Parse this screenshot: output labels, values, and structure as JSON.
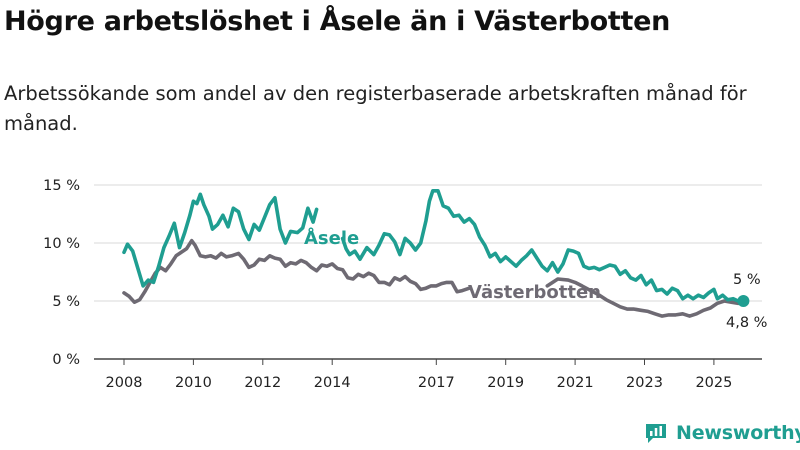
{
  "title": "Högre arbetslöshet i Åsele än i Västerbotten",
  "subtitle": "Arbetssökande som andel av den registerbaserade arbetskraften månad för månad.",
  "logo": {
    "text": "Newsworthy",
    "icon": "bar-chart-icon"
  },
  "colors": {
    "asele": "#1f9e91",
    "vasterbotten": "#6e6a73",
    "grid": "#d9d9d9",
    "axis": "#444444"
  },
  "chart_data": {
    "type": "line",
    "title": "Högre arbetslöshet i Åsele än i Västerbotten",
    "xlabel": "",
    "ylabel": "",
    "xlim": [
      2007.5,
      2026.5
    ],
    "ylim": [
      0,
      15
    ],
    "yticks": [
      0,
      5,
      10,
      15
    ],
    "ytick_labels": [
      "0 %",
      "5 %",
      "10 %",
      "15 %"
    ],
    "xticks": [
      2008,
      2010,
      2012,
      2014,
      2017,
      2019,
      2021,
      2023,
      2025
    ],
    "xtick_labels": [
      "2008",
      "2010",
      "2012",
      "2014",
      "2017",
      "2019",
      "2021",
      "2023",
      "2025"
    ],
    "grid": true,
    "series": [
      {
        "name": "Åsele",
        "label": "Åsele",
        "end_label": "5 %",
        "points": [
          [
            2008.0,
            9.2
          ],
          [
            2008.1,
            9.9
          ],
          [
            2008.25,
            9.3
          ],
          [
            2008.4,
            7.8
          ],
          [
            2008.55,
            6.3
          ],
          [
            2008.7,
            6.8
          ],
          [
            2008.85,
            6.6
          ],
          [
            2009.0,
            8.0
          ],
          [
            2009.15,
            9.6
          ],
          [
            2009.3,
            10.6
          ],
          [
            2009.45,
            11.7
          ],
          [
            2009.6,
            9.6
          ],
          [
            2009.75,
            10.9
          ],
          [
            2009.9,
            12.4
          ],
          [
            2010.0,
            13.6
          ],
          [
            2010.1,
            13.4
          ],
          [
            2010.2,
            14.2
          ],
          [
            2010.3,
            13.3
          ],
          [
            2010.45,
            12.3
          ],
          [
            2010.55,
            11.2
          ],
          [
            2010.7,
            11.6
          ],
          [
            2010.85,
            12.4
          ],
          [
            2011.0,
            11.4
          ],
          [
            2011.15,
            13.0
          ],
          [
            2011.3,
            12.7
          ],
          [
            2011.45,
            11.2
          ],
          [
            2011.6,
            10.3
          ],
          [
            2011.75,
            11.6
          ],
          [
            2011.9,
            11.1
          ],
          [
            2012.05,
            12.2
          ],
          [
            2012.2,
            13.3
          ],
          [
            2012.35,
            13.9
          ],
          [
            2012.5,
            11.2
          ],
          [
            2012.65,
            10.0
          ],
          [
            2012.8,
            11.0
          ],
          [
            2013.0,
            10.9
          ],
          [
            2013.15,
            11.3
          ],
          [
            2013.3,
            13.0
          ],
          [
            2013.45,
            11.8
          ],
          [
            2013.55,
            12.9
          ],
          [
            null,
            null
          ],
          [
            2014.3,
            10.4
          ],
          [
            2014.4,
            9.5
          ],
          [
            2014.5,
            9.0
          ],
          [
            2014.65,
            9.3
          ],
          [
            2014.8,
            8.6
          ],
          [
            2015.0,
            9.6
          ],
          [
            2015.2,
            9.0
          ],
          [
            2015.35,
            9.8
          ],
          [
            2015.5,
            10.8
          ],
          [
            2015.65,
            10.7
          ],
          [
            2015.8,
            10.1
          ],
          [
            2015.95,
            9.0
          ],
          [
            2016.1,
            10.4
          ],
          [
            2016.25,
            10.0
          ],
          [
            2016.4,
            9.4
          ],
          [
            2016.55,
            10.0
          ],
          [
            2016.7,
            11.9
          ],
          [
            2016.8,
            13.6
          ],
          [
            2016.9,
            14.5
          ],
          [
            2017.05,
            14.5
          ],
          [
            2017.2,
            13.2
          ],
          [
            2017.35,
            13.0
          ],
          [
            2017.5,
            12.3
          ],
          [
            2017.65,
            12.4
          ],
          [
            2017.8,
            11.8
          ],
          [
            2017.95,
            12.1
          ],
          [
            2018.1,
            11.6
          ],
          [
            2018.25,
            10.5
          ],
          [
            2018.4,
            9.8
          ],
          [
            2018.55,
            8.8
          ],
          [
            2018.7,
            9.1
          ],
          [
            2018.85,
            8.4
          ],
          [
            2019.0,
            8.8
          ],
          [
            2019.15,
            8.4
          ],
          [
            2019.3,
            8.0
          ],
          [
            2019.45,
            8.5
          ],
          [
            2019.6,
            8.9
          ],
          [
            2019.75,
            9.4
          ],
          [
            2019.9,
            8.7
          ],
          [
            2020.05,
            8.0
          ],
          [
            2020.2,
            7.6
          ],
          [
            2020.35,
            8.3
          ],
          [
            2020.5,
            7.5
          ],
          [
            2020.65,
            8.2
          ],
          [
            2020.8,
            9.4
          ],
          [
            2020.95,
            9.3
          ],
          [
            2021.1,
            9.1
          ],
          [
            2021.25,
            8.0
          ],
          [
            2021.4,
            7.8
          ],
          [
            2021.55,
            7.9
          ],
          [
            2021.7,
            7.7
          ],
          [
            2021.85,
            7.9
          ],
          [
            2022.0,
            8.1
          ],
          [
            2022.15,
            8.0
          ],
          [
            2022.3,
            7.3
          ],
          [
            2022.45,
            7.6
          ],
          [
            2022.6,
            7.0
          ],
          [
            2022.75,
            6.8
          ],
          [
            2022.9,
            7.2
          ],
          [
            2023.05,
            6.4
          ],
          [
            2023.2,
            6.8
          ],
          [
            2023.35,
            5.9
          ],
          [
            2023.5,
            6.0
          ],
          [
            2023.65,
            5.6
          ],
          [
            2023.8,
            6.1
          ],
          [
            2023.95,
            5.9
          ],
          [
            2024.1,
            5.2
          ],
          [
            2024.25,
            5.5
          ],
          [
            2024.4,
            5.2
          ],
          [
            2024.55,
            5.5
          ],
          [
            2024.7,
            5.3
          ],
          [
            2024.85,
            5.7
          ],
          [
            2025.0,
            6.0
          ],
          [
            2025.1,
            5.2
          ],
          [
            2025.25,
            5.5
          ],
          [
            2025.4,
            5.1
          ],
          [
            2025.55,
            5.2
          ],
          [
            2025.7,
            5.0
          ],
          [
            2025.85,
            5.0
          ]
        ]
      },
      {
        "name": "Västerbotten",
        "label": "Västerbotten",
        "end_label": "4,8 %",
        "points": [
          [
            2008.0,
            5.7
          ],
          [
            2008.15,
            5.4
          ],
          [
            2008.3,
            4.9
          ],
          [
            2008.45,
            5.1
          ],
          [
            2008.6,
            5.8
          ],
          [
            2008.75,
            6.6
          ],
          [
            2008.9,
            7.4
          ],
          [
            2009.05,
            7.9
          ],
          [
            2009.2,
            7.6
          ],
          [
            2009.35,
            8.2
          ],
          [
            2009.5,
            8.9
          ],
          [
            2009.65,
            9.2
          ],
          [
            2009.8,
            9.5
          ],
          [
            2009.95,
            10.2
          ],
          [
            2010.05,
            9.8
          ],
          [
            2010.2,
            8.9
          ],
          [
            2010.35,
            8.8
          ],
          [
            2010.5,
            8.9
          ],
          [
            2010.65,
            8.7
          ],
          [
            2010.8,
            9.1
          ],
          [
            2010.95,
            8.8
          ],
          [
            2011.1,
            8.9
          ],
          [
            2011.3,
            9.1
          ],
          [
            2011.45,
            8.6
          ],
          [
            2011.6,
            7.9
          ],
          [
            2011.75,
            8.1
          ],
          [
            2011.9,
            8.6
          ],
          [
            2012.05,
            8.5
          ],
          [
            2012.2,
            8.9
          ],
          [
            2012.35,
            8.7
          ],
          [
            2012.5,
            8.6
          ],
          [
            2012.65,
            8.0
          ],
          [
            2012.8,
            8.3
          ],
          [
            2012.95,
            8.2
          ],
          [
            2013.1,
            8.5
          ],
          [
            2013.25,
            8.3
          ],
          [
            2013.4,
            7.9
          ],
          [
            2013.55,
            7.6
          ],
          [
            2013.7,
            8.1
          ],
          [
            2013.85,
            8.0
          ],
          [
            2014.0,
            8.2
          ],
          [
            2014.15,
            7.8
          ],
          [
            2014.3,
            7.7
          ],
          [
            2014.45,
            7.0
          ],
          [
            2014.6,
            6.9
          ],
          [
            2014.75,
            7.3
          ],
          [
            2014.9,
            7.1
          ],
          [
            2015.05,
            7.4
          ],
          [
            2015.2,
            7.2
          ],
          [
            2015.35,
            6.6
          ],
          [
            2015.5,
            6.6
          ],
          [
            2015.65,
            6.4
          ],
          [
            2015.8,
            7.0
          ],
          [
            2015.95,
            6.8
          ],
          [
            2016.1,
            7.1
          ],
          [
            2016.25,
            6.7
          ],
          [
            2016.4,
            6.5
          ],
          [
            2016.55,
            6.0
          ],
          [
            2016.7,
            6.1
          ],
          [
            2016.85,
            6.3
          ],
          [
            2017.0,
            6.3
          ],
          [
            2017.15,
            6.5
          ],
          [
            2017.3,
            6.6
          ],
          [
            2017.45,
            6.6
          ],
          [
            2017.6,
            5.8
          ],
          [
            2017.75,
            5.9
          ],
          [
            2017.95,
            6.1
          ],
          [
            null,
            null
          ],
          [
            2020.2,
            6.3
          ],
          [
            2020.5,
            6.9
          ],
          [
            2020.8,
            6.8
          ],
          [
            2021.0,
            6.6
          ],
          [
            2021.2,
            6.3
          ],
          [
            2021.45,
            5.9
          ],
          [
            2021.7,
            5.5
          ],
          [
            2021.9,
            5.1
          ],
          [
            2022.1,
            4.8
          ],
          [
            2022.3,
            4.5
          ],
          [
            2022.5,
            4.3
          ],
          [
            2022.7,
            4.3
          ],
          [
            2022.9,
            4.2
          ],
          [
            2023.1,
            4.1
          ],
          [
            2023.3,
            3.9
          ],
          [
            2023.5,
            3.7
          ],
          [
            2023.7,
            3.8
          ],
          [
            2023.9,
            3.8
          ],
          [
            2024.1,
            3.9
          ],
          [
            2024.3,
            3.7
          ],
          [
            2024.5,
            3.9
          ],
          [
            2024.7,
            4.2
          ],
          [
            2024.9,
            4.4
          ],
          [
            2025.1,
            4.8
          ],
          [
            2025.3,
            5.0
          ],
          [
            2025.5,
            4.9
          ],
          [
            2025.7,
            4.8
          ],
          [
            2025.85,
            4.8
          ]
        ]
      }
    ]
  }
}
